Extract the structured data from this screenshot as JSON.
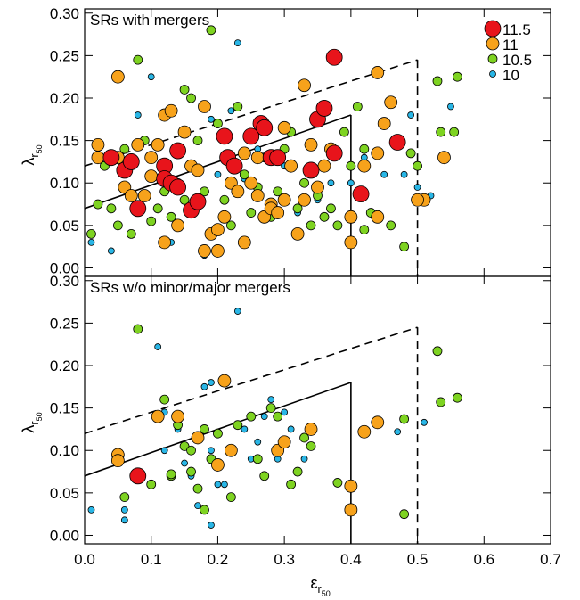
{
  "chart_data": [
    {
      "type": "scatter",
      "title": "SRs with mergers",
      "ylabel": [
        "λ",
        "r",
        "50"
      ],
      "xlim": [
        0,
        0.7
      ],
      "ylim": [
        -0.01,
        0.305
      ],
      "xticks": [
        {
          "value": 0,
          "label": "0.0"
        },
        0.1,
        0.2,
        0.3,
        0.4,
        0.5,
        0.6,
        0.7
      ],
      "yticks": [
        {
          "value": 0,
          "label": "0.00"
        },
        0.05,
        {
          "value": 0.1,
          "label": "0.10"
        },
        0.15,
        {
          "value": 0.2,
          "label": "0.20"
        },
        0.25,
        {
          "value": 0.3,
          "label": "0.30"
        }
      ],
      "legend": "upper right",
      "lines": [
        {
          "x": [
            0,
            0.4
          ],
          "y": [
            0.07,
            0.18
          ],
          "style": "solid"
        },
        {
          "x": [
            0,
            0.5
          ],
          "y": [
            0.12,
            0.245
          ],
          "style": "dashed"
        }
      ],
      "series": [
        {
          "name": "11.5",
          "color": "#e8141b",
          "x": [
            0.04,
            0.06,
            0.07,
            0.08,
            0.12,
            0.12,
            0.13,
            0.14,
            0.14,
            0.16,
            0.17,
            0.21,
            0.215,
            0.225,
            0.25,
            0.265,
            0.27,
            0.28,
            0.29,
            0.34,
            0.35,
            0.36,
            0.375,
            0.375,
            0.415,
            0.47
          ],
          "values": [
            0.13,
            0.115,
            0.125,
            0.07,
            0.12,
            0.105,
            0.1,
            0.095,
            0.138,
            0.068,
            0.078,
            0.155,
            0.13,
            0.12,
            0.155,
            0.17,
            0.165,
            0.13,
            0.13,
            0.115,
            0.175,
            0.188,
            0.135,
            0.248,
            0.087,
            0.148
          ]
        },
        {
          "name": "11",
          "color": "#f7a21b",
          "x": [
            0.02,
            0.02,
            0.05,
            0.05,
            0.08,
            0.09,
            0.1,
            0.1,
            0.11,
            0.12,
            0.13,
            0.14,
            0.15,
            0.16,
            0.17,
            0.18,
            0.19,
            0.2,
            0.2,
            0.21,
            0.22,
            0.23,
            0.24,
            0.24,
            0.25,
            0.26,
            0.27,
            0.28,
            0.28,
            0.29,
            0.3,
            0.3,
            0.31,
            0.32,
            0.33,
            0.33,
            0.34,
            0.35,
            0.36,
            0.37,
            0.4,
            0.4,
            0.42,
            0.44,
            0.44,
            0.44,
            0.45,
            0.46,
            0.51,
            0.5,
            0.54,
            0.18,
            0.12,
            0.06,
            0.07,
            0.26
          ],
          "values": [
            0.13,
            0.145,
            0.225,
            0.13,
            0.145,
            0.085,
            0.108,
            0.13,
            0.145,
            0.18,
            0.185,
            0.05,
            0.16,
            0.12,
            0.115,
            0.19,
            0.04,
            0.02,
            0.045,
            0.06,
            0.1,
            0.09,
            0.135,
            0.03,
            0.1,
            0.085,
            0.06,
            0.075,
            0.07,
            0.065,
            0.08,
            0.165,
            0.12,
            0.04,
            0.215,
            0.08,
            0.145,
            0.095,
            0.12,
            0.14,
            0.03,
            0.06,
            0.12,
            0.135,
            0.23,
            0.06,
            0.17,
            0.195,
            0.08,
            0.08,
            0.13,
            0.02,
            0.03,
            0.095,
            0.085,
            0.13
          ]
        },
        {
          "name": "10.5",
          "color": "#7ed321",
          "x": [
            0.01,
            0.02,
            0.03,
            0.04,
            0.05,
            0.06,
            0.07,
            0.08,
            0.09,
            0.1,
            0.11,
            0.12,
            0.13,
            0.14,
            0.15,
            0.15,
            0.16,
            0.17,
            0.18,
            0.19,
            0.2,
            0.21,
            0.22,
            0.23,
            0.24,
            0.25,
            0.26,
            0.27,
            0.28,
            0.29,
            0.3,
            0.31,
            0.32,
            0.33,
            0.34,
            0.35,
            0.36,
            0.37,
            0.38,
            0.39,
            0.4,
            0.41,
            0.42,
            0.43,
            0.48,
            0.49,
            0.5,
            0.53,
            0.535,
            0.555,
            0.56,
            0.46,
            0.42
          ],
          "values": [
            0.04,
            0.075,
            0.12,
            0.07,
            0.05,
            0.14,
            0.04,
            0.245,
            0.15,
            0.055,
            0.07,
            0.09,
            0.06,
            0.1,
            0.21,
            0.08,
            0.2,
            0.15,
            0.09,
            0.28,
            0.17,
            0.08,
            0.05,
            0.19,
            0.11,
            0.065,
            0.095,
            0.13,
            0.06,
            0.09,
            0.14,
            0.16,
            0.07,
            0.1,
            0.05,
            0.085,
            0.06,
            0.07,
            0.05,
            0.16,
            0.12,
            0.19,
            0.14,
            0.065,
            0.025,
            0.135,
            0.12,
            0.22,
            0.16,
            0.16,
            0.225,
            0.05,
            0.045
          ]
        },
        {
          "name": "10",
          "color": "#29b6e6",
          "x": [
            0.01,
            0.04,
            0.08,
            0.1,
            0.11,
            0.13,
            0.16,
            0.19,
            0.2,
            0.21,
            0.23,
            0.24,
            0.26,
            0.28,
            0.3,
            0.32,
            0.35,
            0.37,
            0.4,
            0.42,
            0.45,
            0.47,
            0.48,
            0.49,
            0.5,
            0.52,
            0.55,
            0.18,
            0.22
          ],
          "values": [
            0.03,
            0.02,
            0.18,
            0.225,
            0.07,
            0.03,
            0.12,
            0.175,
            0.11,
            0.06,
            0.265,
            0.105,
            0.14,
            0.075,
            0.12,
            0.065,
            0.08,
            0.1,
            0.1,
            0.13,
            0.11,
            0.15,
            0.11,
            0.18,
            0.095,
            0.085,
            0.19,
            0.015,
            0.185
          ]
        }
      ]
    },
    {
      "type": "scatter",
      "title": "SRs w/o minor/major mergers",
      "xlabel": [
        "ε",
        "r",
        "50"
      ],
      "ylabel": [
        "λ",
        "r",
        "50"
      ],
      "xlim": [
        0,
        0.7
      ],
      "ylim": [
        -0.01,
        0.305
      ],
      "xticks": [
        {
          "value": 0,
          "label": "0.0"
        },
        0.1,
        0.2,
        0.3,
        0.4,
        0.5,
        0.6,
        0.7
      ],
      "yticks": [
        {
          "value": 0,
          "label": "0.00"
        },
        0.05,
        {
          "value": 0.1,
          "label": "0.10"
        },
        0.15,
        {
          "value": 0.2,
          "label": "0.20"
        },
        0.25,
        {
          "value": 0.3,
          "label": "0.30"
        }
      ],
      "lines": [
        {
          "x": [
            0,
            0.4
          ],
          "y": [
            0.07,
            0.18
          ],
          "style": "solid"
        },
        {
          "x": [
            0,
            0.5
          ],
          "y": [
            0.12,
            0.245
          ],
          "style": "dashed"
        }
      ],
      "series": [
        {
          "color": "#e8141b",
          "x": [
            0.08
          ],
          "values": [
            0.07
          ]
        },
        {
          "color": "#f7a21b",
          "x": [
            0.05,
            0.05,
            0.11,
            0.14,
            0.17,
            0.2,
            0.21,
            0.22,
            0.29,
            0.3,
            0.34,
            0.4,
            0.4,
            0.42,
            0.44
          ],
          "values": [
            0.095,
            0.088,
            0.14,
            0.14,
            0.115,
            0.083,
            0.182,
            0.1,
            0.1,
            0.11,
            0.125,
            0.058,
            0.03,
            0.122,
            0.133
          ]
        },
        {
          "color": "#7ed321",
          "x": [
            0.08,
            0.06,
            0.1,
            0.12,
            0.13,
            0.13,
            0.14,
            0.15,
            0.16,
            0.16,
            0.17,
            0.18,
            0.18,
            0.19,
            0.2,
            0.22,
            0.23,
            0.25,
            0.26,
            0.27,
            0.28,
            0.29,
            0.3,
            0.31,
            0.32,
            0.33,
            0.34,
            0.38,
            0.48,
            0.48,
            0.53,
            0.535,
            0.56
          ],
          "values": [
            0.243,
            0.045,
            0.06,
            0.16,
            0.07,
            0.072,
            0.13,
            0.105,
            0.1,
            0.075,
            0.055,
            0.03,
            0.125,
            0.09,
            0.12,
            0.045,
            0.13,
            0.14,
            0.09,
            0.07,
            0.15,
            0.14,
            0.11,
            0.06,
            0.075,
            0.115,
            0.105,
            0.062,
            0.137,
            0.025,
            0.217,
            0.157,
            0.162
          ]
        },
        {
          "color": "#29b6e6",
          "x": [
            0.01,
            0.06,
            0.06,
            0.11,
            0.12,
            0.14,
            0.15,
            0.16,
            0.18,
            0.19,
            0.19,
            0.19,
            0.2,
            0.21,
            0.23,
            0.24,
            0.25,
            0.26,
            0.27,
            0.28,
            0.29,
            0.3,
            0.31,
            0.33,
            0.47,
            0.51,
            0.12,
            0.17
          ],
          "values": [
            0.03,
            0.03,
            0.018,
            0.222,
            0.145,
            0.125,
            0.085,
            0.07,
            0.175,
            0.18,
            0.012,
            0.1,
            0.06,
            0.06,
            0.264,
            0.125,
            0.09,
            0.11,
            0.14,
            0.16,
            0.09,
            0.145,
            0.125,
            0.09,
            0.122,
            0.133,
            0.1,
            0.035
          ]
        }
      ]
    }
  ]
}
